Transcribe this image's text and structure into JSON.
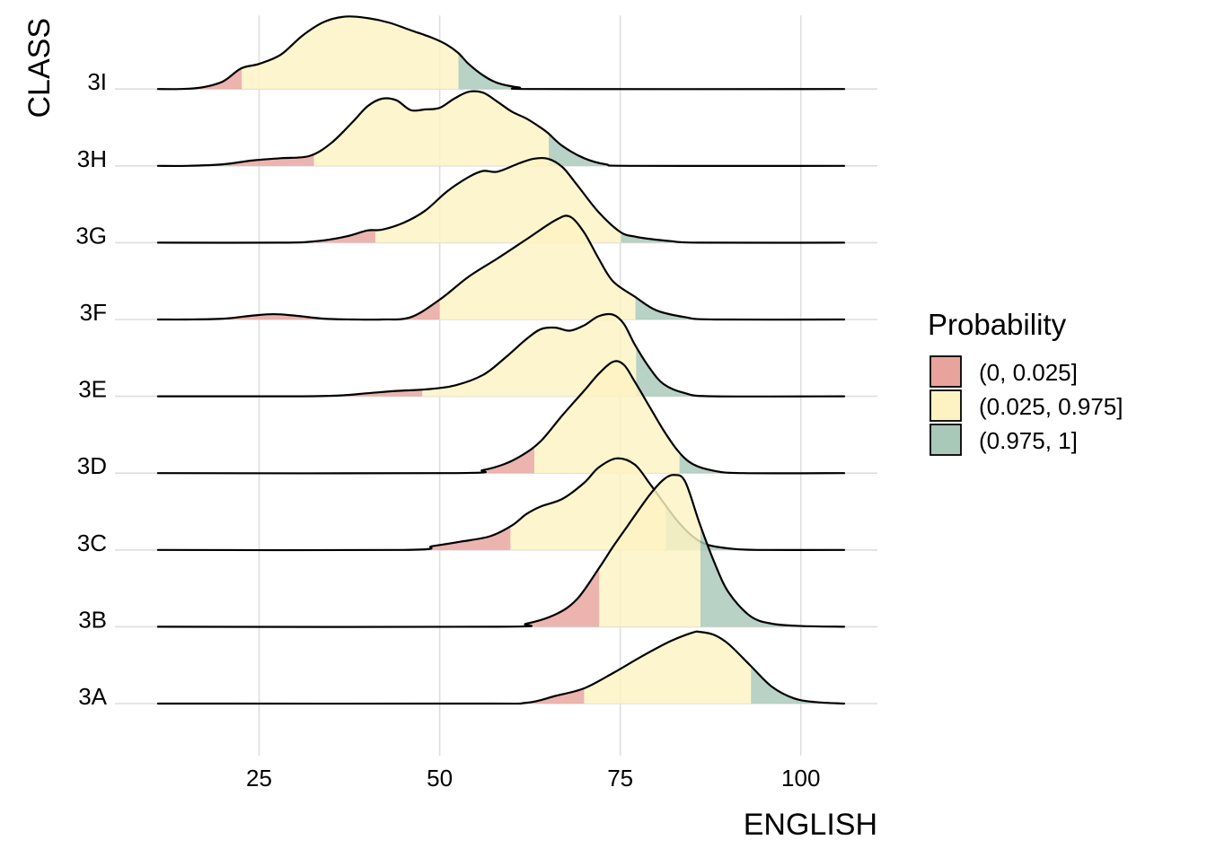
{
  "chart_data": {
    "type": "area",
    "subtype": "ridgeline-density",
    "title": "",
    "xlabel": "ENGLISH",
    "ylabel": "CLASS",
    "xlim": [
      11,
      106
    ],
    "x_ticks": [
      25,
      50,
      75,
      100
    ],
    "grid": true,
    "legend": {
      "title": "Probability",
      "placement": "right",
      "entries": [
        {
          "label": "(0, 0.025]",
          "color": "#E8A49C"
        },
        {
          "label": "(0.025, 0.975]",
          "color": "#FDF3C2"
        },
        {
          "label": "(0.975, 1]",
          "color": "#A8C8B8"
        }
      ]
    },
    "categories": [
      "3A",
      "3B",
      "3C",
      "3D",
      "3E",
      "3F",
      "3G",
      "3H",
      "3I"
    ],
    "series": [
      {
        "category": "3A",
        "quantiles": [
          70,
          93.1
        ],
        "density": [
          [
            11,
            0
          ],
          [
            55,
            0
          ],
          [
            62,
            0.01
          ],
          [
            66,
            0.1
          ],
          [
            70,
            0.2
          ],
          [
            74,
            0.4
          ],
          [
            78,
            0.62
          ],
          [
            82,
            0.82
          ],
          [
            85,
            0.93
          ],
          [
            86,
            0.94
          ],
          [
            88,
            0.9
          ],
          [
            90,
            0.78
          ],
          [
            93,
            0.5
          ],
          [
            96,
            0.22
          ],
          [
            99,
            0.07
          ],
          [
            102,
            0.02
          ],
          [
            106,
            0
          ]
        ]
      },
      {
        "category": "3B",
        "quantiles": [
          72.1,
          86.1
        ],
        "density": [
          [
            11,
            0
          ],
          [
            58,
            0
          ],
          [
            62,
            0.04
          ],
          [
            66,
            0.16
          ],
          [
            69,
            0.36
          ],
          [
            72,
            0.76
          ],
          [
            74,
            1.05
          ],
          [
            76,
            1.32
          ],
          [
            79,
            1.72
          ],
          [
            81,
            1.93
          ],
          [
            82.5,
            1.99
          ],
          [
            84,
            1.9
          ],
          [
            86,
            1.35
          ],
          [
            88,
            0.85
          ],
          [
            90,
            0.45
          ],
          [
            93,
            0.14
          ],
          [
            96,
            0.04
          ],
          [
            100,
            0.01
          ],
          [
            106,
            0
          ]
        ]
      },
      {
        "category": "3C",
        "quantiles": [
          59.8,
          81.3
        ],
        "density": [
          [
            11,
            0
          ],
          [
            45,
            0
          ],
          [
            49,
            0.05
          ],
          [
            53,
            0.11
          ],
          [
            57,
            0.18
          ],
          [
            60,
            0.32
          ],
          [
            62,
            0.47
          ],
          [
            64,
            0.57
          ],
          [
            67,
            0.67
          ],
          [
            70,
            0.88
          ],
          [
            72,
            1.08
          ],
          [
            74.5,
            1.2
          ],
          [
            77,
            1.12
          ],
          [
            79,
            0.88
          ],
          [
            81,
            0.62
          ],
          [
            83,
            0.37
          ],
          [
            85,
            0.18
          ],
          [
            87,
            0.07
          ],
          [
            90,
            0.02
          ],
          [
            94,
            0
          ],
          [
            106,
            0
          ]
        ]
      },
      {
        "category": "3D",
        "quantiles": [
          63.1,
          83.2
        ],
        "density": [
          [
            11,
            0
          ],
          [
            52,
            0
          ],
          [
            56,
            0.04
          ],
          [
            59,
            0.12
          ],
          [
            61.5,
            0.24
          ],
          [
            64,
            0.42
          ],
          [
            67,
            0.76
          ],
          [
            70,
            1.08
          ],
          [
            72,
            1.3
          ],
          [
            74,
            1.46
          ],
          [
            75.5,
            1.42
          ],
          [
            77,
            1.2
          ],
          [
            79,
            0.88
          ],
          [
            81,
            0.56
          ],
          [
            83,
            0.29
          ],
          [
            85,
            0.12
          ],
          [
            88,
            0.03
          ],
          [
            92,
            0
          ],
          [
            106,
            0
          ]
        ]
      },
      {
        "category": "3E",
        "quantiles": [
          47.6,
          77.2
        ],
        "density": [
          [
            11,
            0
          ],
          [
            30,
            0
          ],
          [
            36,
            0.01
          ],
          [
            40,
            0.04
          ],
          [
            44,
            0.07
          ],
          [
            48,
            0.09
          ],
          [
            52,
            0.14
          ],
          [
            56,
            0.28
          ],
          [
            59,
            0.5
          ],
          [
            62,
            0.75
          ],
          [
            64,
            0.88
          ],
          [
            66,
            0.9
          ],
          [
            68,
            0.86
          ],
          [
            70,
            0.93
          ],
          [
            72,
            1.05
          ],
          [
            74,
            1.07
          ],
          [
            75.5,
            0.95
          ],
          [
            77,
            0.68
          ],
          [
            79,
            0.38
          ],
          [
            81,
            0.16
          ],
          [
            84,
            0.04
          ],
          [
            88,
            0
          ],
          [
            106,
            0
          ]
        ]
      },
      {
        "category": "3F",
        "quantiles": [
          50,
          77.1
        ],
        "density": [
          [
            11,
            0
          ],
          [
            15,
            0
          ],
          [
            20,
            0.01
          ],
          [
            24,
            0.05
          ],
          [
            27,
            0.07
          ],
          [
            30,
            0.05
          ],
          [
            34,
            0.01
          ],
          [
            38,
            0
          ],
          [
            42,
            0
          ],
          [
            46,
            0.03
          ],
          [
            50,
            0.26
          ],
          [
            54,
            0.56
          ],
          [
            58,
            0.8
          ],
          [
            62,
            1.05
          ],
          [
            66,
            1.3
          ],
          [
            68,
            1.35
          ],
          [
            70,
            1.14
          ],
          [
            72,
            0.8
          ],
          [
            74,
            0.5
          ],
          [
            77,
            0.3
          ],
          [
            80,
            0.12
          ],
          [
            84,
            0.03
          ],
          [
            88,
            0
          ],
          [
            106,
            0
          ]
        ]
      },
      {
        "category": "3G",
        "quantiles": [
          41.1,
          75.1
        ],
        "density": [
          [
            11,
            0
          ],
          [
            28,
            0
          ],
          [
            33,
            0.02
          ],
          [
            37,
            0.08
          ],
          [
            40,
            0.16
          ],
          [
            42,
            0.17
          ],
          [
            45,
            0.26
          ],
          [
            48,
            0.42
          ],
          [
            51,
            0.67
          ],
          [
            54,
            0.86
          ],
          [
            56,
            0.94
          ],
          [
            58,
            0.93
          ],
          [
            61,
            1.04
          ],
          [
            63,
            1.1
          ],
          [
            65,
            1.1
          ],
          [
            67,
            0.99
          ],
          [
            69,
            0.76
          ],
          [
            72,
            0.4
          ],
          [
            75,
            0.14
          ],
          [
            77,
            0.08
          ],
          [
            79,
            0.05
          ],
          [
            82,
            0.02
          ],
          [
            86,
            0
          ],
          [
            106,
            0
          ]
        ]
      },
      {
        "category": "3H",
        "quantiles": [
          32.6,
          65.1
        ],
        "density": [
          [
            11,
            0
          ],
          [
            15,
            0
          ],
          [
            20,
            0.02
          ],
          [
            24,
            0.07
          ],
          [
            28,
            0.1
          ],
          [
            32,
            0.13
          ],
          [
            35,
            0.3
          ],
          [
            38,
            0.58
          ],
          [
            40,
            0.78
          ],
          [
            42,
            0.88
          ],
          [
            44,
            0.86
          ],
          [
            46,
            0.73
          ],
          [
            48,
            0.74
          ],
          [
            50,
            0.76
          ],
          [
            52,
            0.88
          ],
          [
            54,
            0.97
          ],
          [
            56,
            0.96
          ],
          [
            58,
            0.84
          ],
          [
            60,
            0.71
          ],
          [
            62,
            0.62
          ],
          [
            64,
            0.5
          ],
          [
            65,
            0.43
          ],
          [
            67,
            0.26
          ],
          [
            70,
            0.1
          ],
          [
            73,
            0.02
          ],
          [
            77,
            0
          ],
          [
            106,
            0
          ]
        ]
      },
      {
        "category": "3I",
        "quantiles": [
          22.6,
          52.6
        ],
        "density": [
          [
            11,
            0
          ],
          [
            14,
            0
          ],
          [
            17,
            0.02
          ],
          [
            20,
            0.1
          ],
          [
            22.5,
            0.27
          ],
          [
            25,
            0.33
          ],
          [
            28,
            0.45
          ],
          [
            31,
            0.7
          ],
          [
            34,
            0.88
          ],
          [
            37,
            0.95
          ],
          [
            40,
            0.93
          ],
          [
            43,
            0.87
          ],
          [
            46,
            0.77
          ],
          [
            49,
            0.67
          ],
          [
            51,
            0.58
          ],
          [
            52.6,
            0.47
          ],
          [
            54,
            0.33
          ],
          [
            56,
            0.18
          ],
          [
            58,
            0.08
          ],
          [
            61,
            0.02
          ],
          [
            64,
            0
          ],
          [
            106,
            0
          ]
        ]
      }
    ]
  }
}
